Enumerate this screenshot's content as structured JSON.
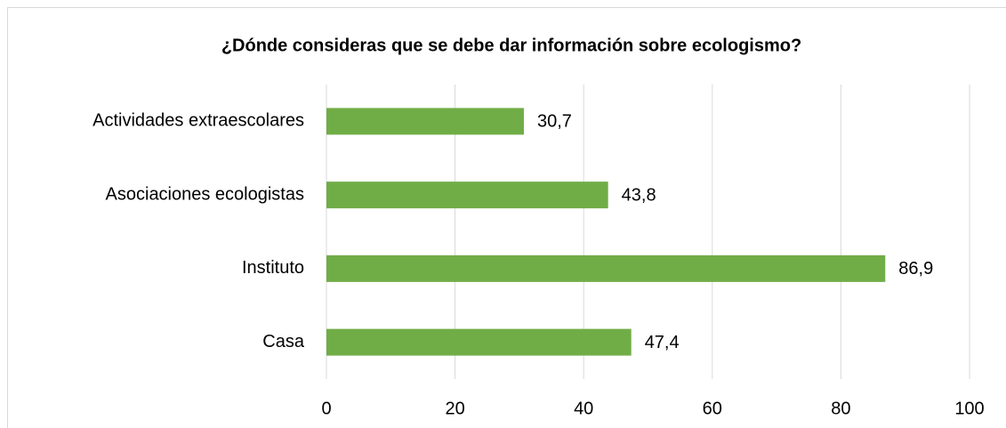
{
  "chart_data": {
    "type": "bar",
    "orientation": "horizontal",
    "title": "¿Dónde consideras que se debe dar información sobre ecologismo?",
    "categories": [
      "Actividades extraescolares",
      "Asociaciones ecologistas",
      "Instituto",
      "Casa"
    ],
    "values": [
      30.7,
      43.8,
      86.9,
      47.4
    ],
    "value_labels": [
      "30,7",
      "43,8",
      "86,9",
      "47,4"
    ],
    "color": "#70ad47",
    "xlim": [
      0,
      100
    ],
    "xticks": [
      0,
      20,
      40,
      60,
      80,
      100
    ],
    "grid": true
  }
}
